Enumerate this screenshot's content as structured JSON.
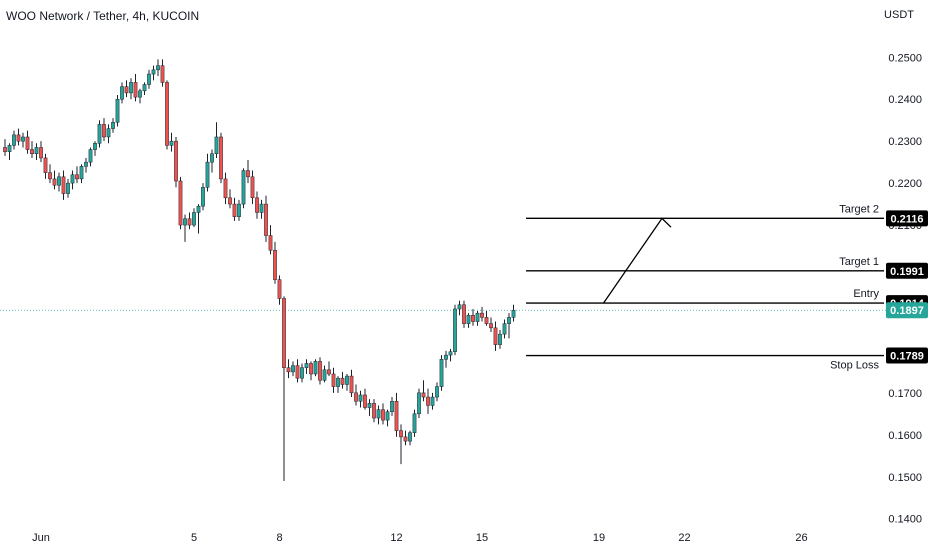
{
  "header": {
    "symbol_title": "WOO Network / Tether, 4h, KUCOIN",
    "currency": "USDT"
  },
  "chart_data": {
    "type": "candlestick",
    "price_axis": {
      "ticks": [
        "0.2500",
        "0.2400",
        "0.2300",
        "0.2200",
        "0.2100",
        "0.1700",
        "0.1600",
        "0.1500",
        "0.1400"
      ],
      "ylim": [
        0.1385,
        0.2565
      ]
    },
    "time_axis": {
      "labels": [
        {
          "label": "Jun",
          "index": 8
        },
        {
          "label": "5",
          "index": 42
        },
        {
          "label": "8",
          "index": 61
        },
        {
          "label": "12",
          "index": 87
        },
        {
          "label": "15",
          "index": 106
        },
        {
          "label": "19",
          "index": 132
        },
        {
          "label": "22",
          "index": 151
        },
        {
          "label": "26",
          "index": 177
        }
      ]
    },
    "candles": [
      [
        0.2285,
        0.2305,
        0.2265,
        0.2275
      ],
      [
        0.2275,
        0.2295,
        0.2255,
        0.229
      ],
      [
        0.229,
        0.2325,
        0.228,
        0.2315
      ],
      [
        0.2315,
        0.233,
        0.229,
        0.23
      ],
      [
        0.23,
        0.232,
        0.2285,
        0.231
      ],
      [
        0.231,
        0.2325,
        0.227,
        0.228
      ],
      [
        0.228,
        0.23,
        0.226,
        0.227
      ],
      [
        0.227,
        0.2295,
        0.2255,
        0.2285
      ],
      [
        0.2285,
        0.23,
        0.225,
        0.226
      ],
      [
        0.226,
        0.227,
        0.221,
        0.2225
      ],
      [
        0.2225,
        0.2245,
        0.22,
        0.221
      ],
      [
        0.221,
        0.223,
        0.2185,
        0.2195
      ],
      [
        0.2195,
        0.2225,
        0.218,
        0.2215
      ],
      [
        0.2215,
        0.223,
        0.216,
        0.2175
      ],
      [
        0.2175,
        0.221,
        0.2165,
        0.22
      ],
      [
        0.22,
        0.223,
        0.2185,
        0.222
      ],
      [
        0.222,
        0.224,
        0.22,
        0.221
      ],
      [
        0.221,
        0.2245,
        0.22,
        0.224
      ],
      [
        0.224,
        0.226,
        0.2225,
        0.225
      ],
      [
        0.225,
        0.2285,
        0.224,
        0.228
      ],
      [
        0.228,
        0.23,
        0.2265,
        0.2295
      ],
      [
        0.2295,
        0.235,
        0.2285,
        0.234
      ],
      [
        0.234,
        0.2355,
        0.23,
        0.231
      ],
      [
        0.231,
        0.234,
        0.2295,
        0.233
      ],
      [
        0.233,
        0.2355,
        0.232,
        0.2345
      ],
      [
        0.2345,
        0.241,
        0.2335,
        0.24
      ],
      [
        0.24,
        0.244,
        0.239,
        0.243
      ],
      [
        0.243,
        0.2445,
        0.2405,
        0.2415
      ],
      [
        0.2415,
        0.245,
        0.24,
        0.244
      ],
      [
        0.244,
        0.246,
        0.2395,
        0.2405
      ],
      [
        0.2405,
        0.2425,
        0.239,
        0.242
      ],
      [
        0.242,
        0.244,
        0.241,
        0.2435
      ],
      [
        0.2435,
        0.247,
        0.2425,
        0.246
      ],
      [
        0.246,
        0.248,
        0.2445,
        0.247
      ],
      [
        0.247,
        0.2495,
        0.2455,
        0.248
      ],
      [
        0.248,
        0.2495,
        0.243,
        0.244
      ],
      [
        0.244,
        0.2445,
        0.228,
        0.229
      ],
      [
        0.229,
        0.232,
        0.2275,
        0.23
      ],
      [
        0.23,
        0.231,
        0.219,
        0.2205
      ],
      [
        0.2205,
        0.2215,
        0.209,
        0.21
      ],
      [
        0.21,
        0.2125,
        0.206,
        0.2115
      ],
      [
        0.2115,
        0.213,
        0.209,
        0.21
      ],
      [
        0.21,
        0.214,
        0.2095,
        0.213
      ],
      [
        0.213,
        0.215,
        0.208,
        0.2145
      ],
      [
        0.2145,
        0.22,
        0.2135,
        0.219
      ],
      [
        0.219,
        0.227,
        0.218,
        0.225
      ],
      [
        0.225,
        0.228,
        0.2225,
        0.227
      ],
      [
        0.227,
        0.2345,
        0.226,
        0.231
      ],
      [
        0.231,
        0.232,
        0.22,
        0.221
      ],
      [
        0.221,
        0.2225,
        0.215,
        0.2165
      ],
      [
        0.2165,
        0.2185,
        0.214,
        0.215
      ],
      [
        0.215,
        0.2165,
        0.211,
        0.212
      ],
      [
        0.212,
        0.216,
        0.211,
        0.215
      ],
      [
        0.215,
        0.2235,
        0.214,
        0.223
      ],
      [
        0.223,
        0.2255,
        0.22,
        0.2215
      ],
      [
        0.2215,
        0.223,
        0.215,
        0.2165
      ],
      [
        0.2165,
        0.218,
        0.2115,
        0.213
      ],
      [
        0.213,
        0.216,
        0.2115,
        0.215
      ],
      [
        0.215,
        0.217,
        0.206,
        0.2075
      ],
      [
        0.2075,
        0.21,
        0.203,
        0.204
      ],
      [
        0.204,
        0.206,
        0.196,
        0.197
      ],
      [
        0.197,
        0.198,
        0.191,
        0.1925
      ],
      [
        0.1925,
        0.193,
        0.149,
        0.176
      ],
      [
        0.176,
        0.178,
        0.1735,
        0.175
      ],
      [
        0.175,
        0.1775,
        0.174,
        0.1765
      ],
      [
        0.1765,
        0.178,
        0.1725,
        0.1735
      ],
      [
        0.1735,
        0.177,
        0.1725,
        0.176
      ],
      [
        0.176,
        0.178,
        0.1745,
        0.177
      ],
      [
        0.177,
        0.1775,
        0.173,
        0.1745
      ],
      [
        0.1745,
        0.178,
        0.174,
        0.1775
      ],
      [
        0.1775,
        0.1785,
        0.172,
        0.173
      ],
      [
        0.173,
        0.1765,
        0.1725,
        0.1755
      ],
      [
        0.1755,
        0.1775,
        0.174,
        0.1745
      ],
      [
        0.1745,
        0.176,
        0.17,
        0.1715
      ],
      [
        0.1715,
        0.174,
        0.17,
        0.1735
      ],
      [
        0.1735,
        0.175,
        0.171,
        0.172
      ],
      [
        0.172,
        0.1745,
        0.1705,
        0.174
      ],
      [
        0.174,
        0.1755,
        0.169,
        0.17
      ],
      [
        0.17,
        0.172,
        0.167,
        0.168
      ],
      [
        0.168,
        0.1705,
        0.1665,
        0.1695
      ],
      [
        0.1695,
        0.171,
        0.166,
        0.1665
      ],
      [
        0.1665,
        0.1685,
        0.1645,
        0.1675
      ],
      [
        0.1675,
        0.1685,
        0.163,
        0.164
      ],
      [
        0.164,
        0.167,
        0.1625,
        0.166
      ],
      [
        0.166,
        0.1675,
        0.1625,
        0.1635
      ],
      [
        0.1635,
        0.166,
        0.162,
        0.1655
      ],
      [
        0.1655,
        0.169,
        0.1645,
        0.168
      ],
      [
        0.168,
        0.17,
        0.1595,
        0.161
      ],
      [
        0.161,
        0.1625,
        0.153,
        0.1595
      ],
      [
        0.1595,
        0.161,
        0.1575,
        0.1585
      ],
      [
        0.1585,
        0.161,
        0.1575,
        0.1605
      ],
      [
        0.1605,
        0.166,
        0.1595,
        0.165
      ],
      [
        0.165,
        0.171,
        0.164,
        0.17
      ],
      [
        0.17,
        0.173,
        0.168,
        0.169
      ],
      [
        0.169,
        0.171,
        0.165,
        0.167
      ],
      [
        0.167,
        0.17,
        0.166,
        0.169
      ],
      [
        0.169,
        0.1725,
        0.168,
        0.1715
      ],
      [
        0.1715,
        0.179,
        0.1705,
        0.178
      ],
      [
        0.178,
        0.18,
        0.176,
        0.179
      ],
      [
        0.179,
        0.1805,
        0.1775,
        0.1798
      ],
      [
        0.1798,
        0.191,
        0.179,
        0.19
      ],
      [
        0.19,
        0.192,
        0.1885,
        0.191
      ],
      [
        0.191,
        0.192,
        0.1855,
        0.1865
      ],
      [
        0.1865,
        0.189,
        0.1855,
        0.1885
      ],
      [
        0.1885,
        0.19,
        0.186,
        0.187
      ],
      [
        0.187,
        0.1895,
        0.186,
        0.189
      ],
      [
        0.189,
        0.1905,
        0.187,
        0.188
      ],
      [
        0.188,
        0.1895,
        0.186,
        0.1865
      ],
      [
        0.1865,
        0.188,
        0.1845,
        0.1855
      ],
      [
        0.1855,
        0.187,
        0.18,
        0.1815
      ],
      [
        0.1815,
        0.185,
        0.1805,
        0.184
      ],
      [
        0.184,
        0.1875,
        0.183,
        0.1865
      ],
      [
        0.1865,
        0.189,
        0.183,
        0.188
      ],
      [
        0.188,
        0.191,
        0.187,
        0.1897
      ]
    ],
    "bull_color": "#26a69a",
    "bear_color": "#ef5350",
    "annotations": [
      {
        "name": "Target 2",
        "price_label": "0.2116",
        "value": 0.2116
      },
      {
        "name": "Target 1",
        "price_label": "0.1991",
        "value": 0.1991
      },
      {
        "name": "Entry",
        "price_label": "0.1914",
        "value": 0.1914
      },
      {
        "name": "Stop Loss",
        "price_label": "0.1789",
        "value": 0.1789
      }
    ],
    "current_price": {
      "label": "0.1897",
      "value": 0.1897,
      "color": "#26a69a"
    },
    "projection_path": [
      {
        "index": 133,
        "value": 0.1914
      },
      {
        "index": 146,
        "value": 0.2116
      },
      {
        "index": 148,
        "value": 0.2095
      }
    ],
    "levels_start_index": 116
  }
}
